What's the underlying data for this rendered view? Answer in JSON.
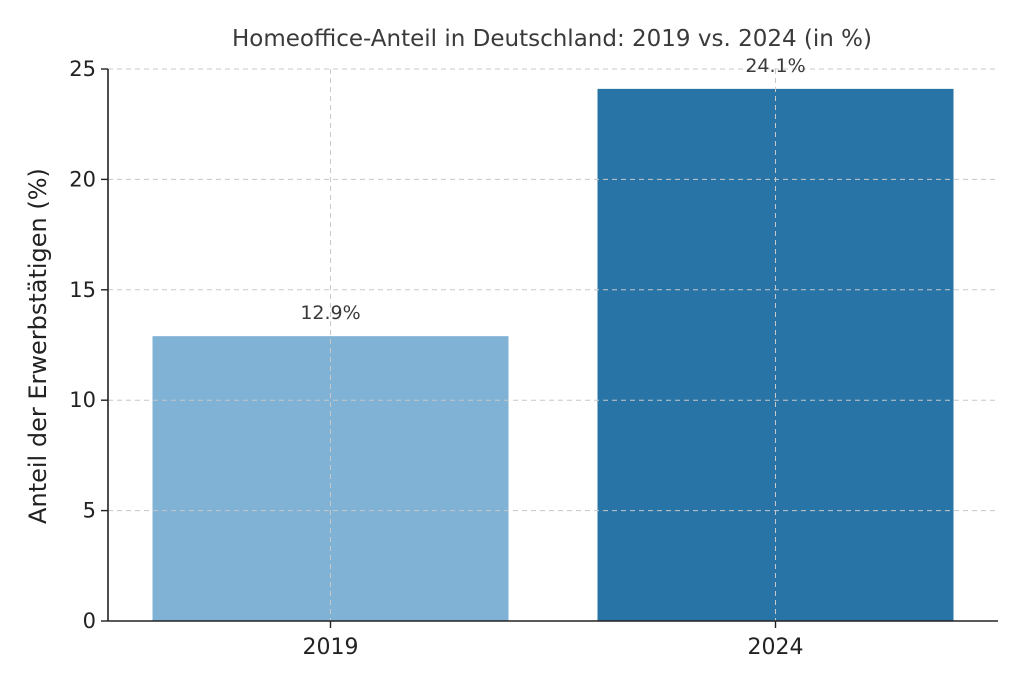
{
  "chart_data": {
    "type": "bar",
    "title": "Homeoffice-Anteil in Deutschland: 2019 vs. 2024 (in %)",
    "xlabel": "",
    "ylabel": "Anteil der Erwerbstätigen (%)",
    "categories": [
      "2019",
      "2024"
    ],
    "values": [
      12.9,
      24.1
    ],
    "data_labels": [
      "12.9%",
      "24.1%"
    ],
    "colors": [
      "#7fb2d5",
      "#2874a6"
    ],
    "ylim": [
      0,
      25
    ],
    "yticks": [
      0,
      5,
      10,
      15,
      20,
      25
    ],
    "grid": true,
    "grid_style": "dashed",
    "legend": "none"
  }
}
